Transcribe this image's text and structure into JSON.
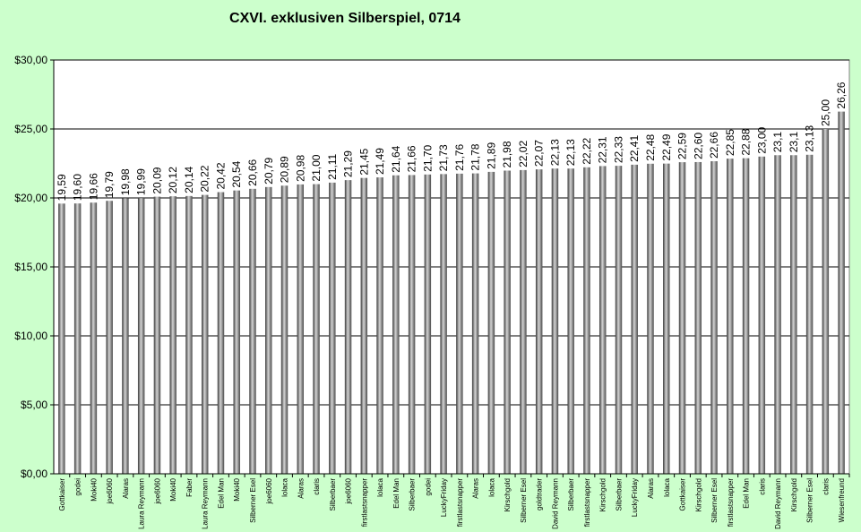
{
  "chart_data": {
    "type": "bar",
    "title": "CXVI. exklusiven Silberspiel, 0714",
    "xlabel": "",
    "ylabel": "",
    "ylim": [
      0,
      30
    ],
    "yticks": [
      "$0,00",
      "$5,00",
      "$10,00",
      "$15,00",
      "$20,00",
      "$25,00",
      "$30,00"
    ],
    "grid": true,
    "legend": "none",
    "colors": {
      "background": "#ccffcc",
      "plot_area": "#ffffff",
      "bar_dark": "#404040",
      "bar_light": "#cfcfcf",
      "grid": "#000000"
    },
    "categories": [
      "Gottkaiser",
      "godei",
      "Moki40",
      "joe6060",
      "Alaras",
      "Laura Reymann",
      "joe6060",
      "Moki40",
      "Faber",
      "Laura Reymann",
      "Edel Man",
      "Moki40",
      "Silberner Esel",
      "joe6060",
      "lolaca",
      "Alaras",
      "claris",
      "Silberbaer",
      "joe6060",
      "firstlastsnapper",
      "lolaca",
      "Edel Man",
      "Silberbaer",
      "godei",
      "LuckyFriday",
      "firstlastsnapper",
      "Alaras",
      "lolaca",
      "Kirschgold",
      "Silberner Esel",
      "goldtrader",
      "David Reymann",
      "Silberbaer",
      "firstlastsnapper",
      "Kirschgold",
      "Silberbaer",
      "LuckyFriday",
      "Alaras",
      "lolaca",
      "Gottkaiser",
      "Kirschgold",
      "Silberner Esel",
      "firstlastsnapper",
      "Edel Man",
      "claris",
      "David Reymann",
      "Kirschgold",
      "Silberner Esel",
      "claris",
      "Wiesenfreund"
    ],
    "values": [
      19.59,
      19.6,
      19.66,
      19.79,
      19.98,
      19.99,
      20.09,
      20.12,
      20.14,
      20.22,
      20.42,
      20.54,
      20.66,
      20.79,
      20.89,
      20.98,
      21.0,
      21.11,
      21.29,
      21.45,
      21.49,
      21.64,
      21.66,
      21.7,
      21.73,
      21.76,
      21.78,
      21.89,
      21.98,
      22.02,
      22.07,
      22.13,
      22.13,
      22.22,
      22.31,
      22.33,
      22.41,
      22.48,
      22.49,
      22.59,
      22.6,
      22.66,
      22.85,
      22.88,
      23.0,
      23.1,
      23.1,
      23.13,
      25.0,
      26.26
    ],
    "labels": [
      "19,59",
      "19,60",
      "19,66",
      "19,79",
      "19,98",
      "19,99",
      "20,09",
      "20,12",
      "20,14",
      "20,22",
      "20,42",
      "20,54",
      "20,66",
      "20,79",
      "20,89",
      "20,98",
      "21,00",
      "21,11",
      "21,29",
      "21,45",
      "21,49",
      "21,64",
      "21,66",
      "21,70",
      "21,73",
      "21,76",
      "21,78",
      "21,89",
      "21,98",
      "22,02",
      "22,07",
      "22,13",
      "22,13",
      "22,22",
      "22,31",
      "22,33",
      "22,41",
      "22,48",
      "22,49",
      "22,59",
      "22,60",
      "22,66",
      "22,85",
      "22,88",
      "23,00",
      "23,1",
      "23,1",
      "23,13",
      "25,00",
      "26,26"
    ]
  }
}
